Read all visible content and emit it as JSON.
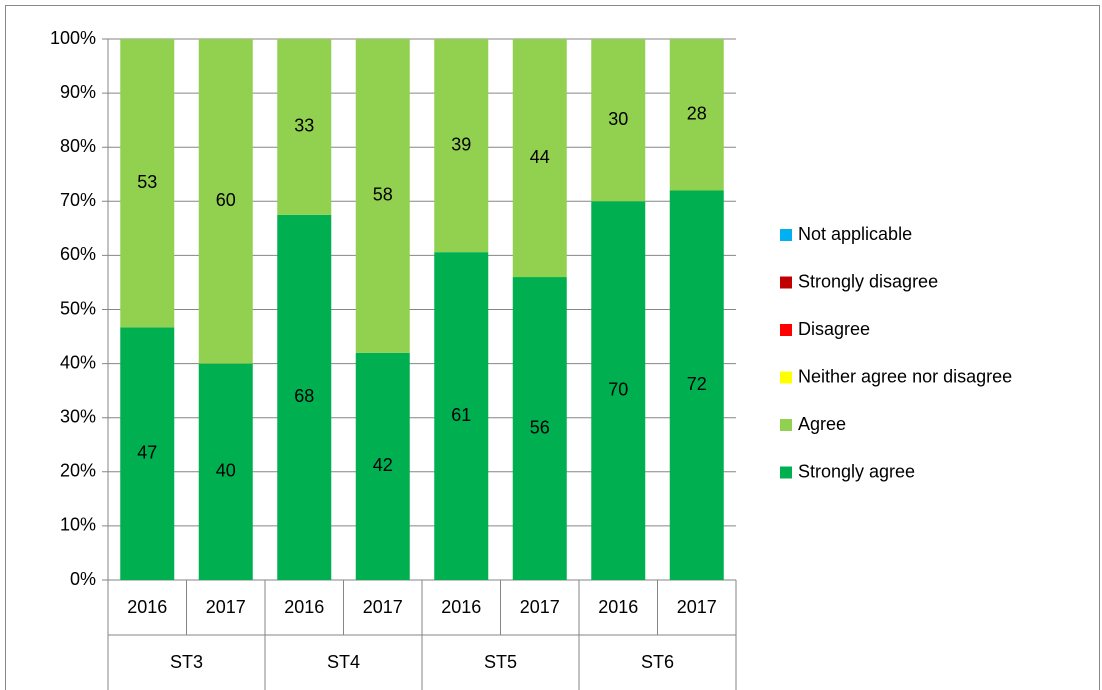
{
  "chart_data": {
    "type": "stacked_bar",
    "categories": [
      "2016",
      "2017",
      "2016",
      "2017",
      "2016",
      "2017",
      "2016",
      "2017"
    ],
    "groups": [
      "ST3",
      "ST4",
      "ST5",
      "ST6"
    ],
    "series": [
      {
        "name": "Strongly agree",
        "color": "#00b050",
        "values": [
          46.7,
          40,
          67.5,
          42,
          60.6,
          56,
          70,
          72
        ],
        "value_labels": [
          "47",
          "40",
          "68",
          "42",
          "61",
          "56",
          "70",
          "72"
        ]
      },
      {
        "name": "Agree",
        "color": "#92d050",
        "values": [
          53.3,
          60,
          32.5,
          58,
          39.4,
          44,
          30,
          28
        ],
        "value_labels": [
          "53",
          "60",
          "33",
          "58",
          "39",
          "44",
          "30",
          "28"
        ]
      },
      {
        "name": "Neither agree nor disagree",
        "color": "#ffff00",
        "values": [
          0,
          0,
          0,
          0,
          0,
          0,
          0,
          0
        ]
      },
      {
        "name": "Disagree",
        "color": "#ff0000",
        "values": [
          0,
          0,
          0,
          0,
          0,
          0,
          0,
          0
        ]
      },
      {
        "name": "Strongly disagree",
        "color": "#c00000",
        "values": [
          0,
          0,
          0,
          0,
          0,
          0,
          0,
          0
        ]
      },
      {
        "name": "Not applicable",
        "color": "#00b0f0",
        "values": [
          0,
          0,
          0,
          0,
          0,
          0,
          0,
          0
        ]
      }
    ],
    "ylim": [
      0,
      100
    ],
    "yticks": [
      {
        "value": 0,
        "label": "0%"
      },
      {
        "value": 10,
        "label": "10%"
      },
      {
        "value": 20,
        "label": "20%"
      },
      {
        "value": 30,
        "label": "30%"
      },
      {
        "value": 40,
        "label": "40%"
      },
      {
        "value": 50,
        "label": "50%"
      },
      {
        "value": 60,
        "label": "60%"
      },
      {
        "value": 70,
        "label": "70%"
      },
      {
        "value": 80,
        "label": "80%"
      },
      {
        "value": 90,
        "label": "90%"
      },
      {
        "value": 100,
        "label": "100%"
      }
    ],
    "grid": true,
    "legend": "right"
  }
}
